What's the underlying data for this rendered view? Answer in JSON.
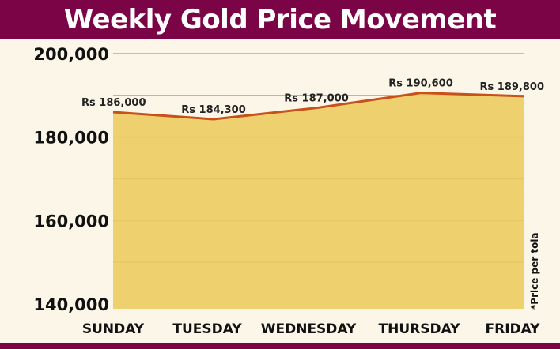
{
  "chart_data": {
    "type": "area",
    "title": "Weekly Gold Price Movement",
    "categories": [
      "SUNDAY",
      "TUESDAY",
      "WEDNESDAY",
      "THURSDAY",
      "FRIDAY"
    ],
    "values": [
      186000,
      184300,
      187000,
      190600,
      189800
    ],
    "data_labels": [
      "Rs 186,000",
      "Rs 184,300",
      "Rs 187,000",
      "Rs 190,600",
      "Rs 189,800"
    ],
    "yticks": [
      200000,
      180000,
      160000,
      140000
    ],
    "ytick_labels": [
      "200,000",
      "180,000",
      "160,000",
      "140,000"
    ],
    "ylim": [
      140000,
      200000
    ],
    "grid": true,
    "note": "*Price per tola",
    "colors": {
      "fill": "#eccb5c",
      "line": "#c8501a",
      "banner": "#7b0446",
      "background": "#fbf6e8"
    }
  }
}
